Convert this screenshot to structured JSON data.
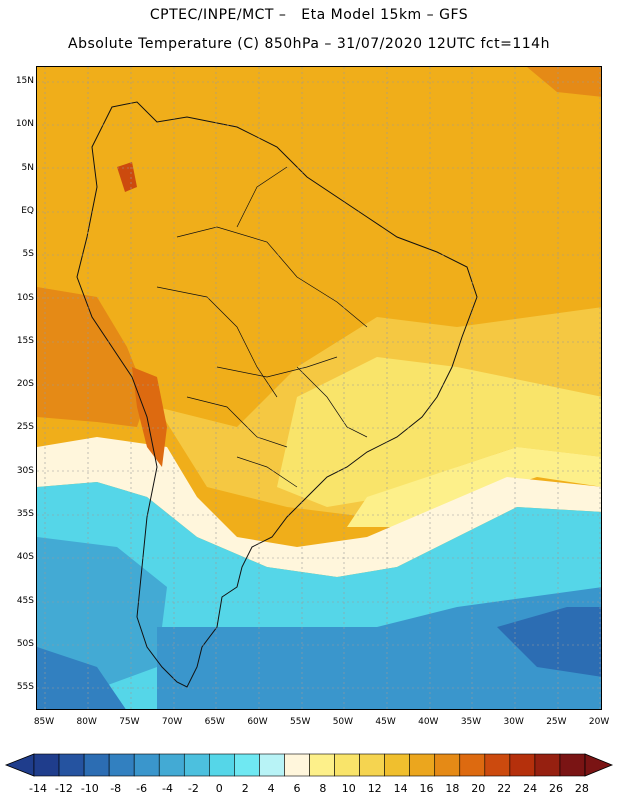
{
  "title_line1": "CPTEC/INPE/MCT –   Eta Model 15km – GFS",
  "title_line2": "Absolute Temperature (C) 850hPa – 31/07/2020 12UTC fct=114h",
  "lat_labels": [
    "15N",
    "10N",
    "5N",
    "EQ",
    "5S",
    "10S",
    "15S",
    "20S",
    "25S",
    "30S",
    "35S",
    "40S",
    "45S",
    "50S",
    "55S"
  ],
  "lon_labels": [
    "85W",
    "80W",
    "75W",
    "70W",
    "65W",
    "60W",
    "55W",
    "50W",
    "45W",
    "40W",
    "35W",
    "30W",
    "25W",
    "20W"
  ],
  "legend": {
    "labels": [
      "-14",
      "-12",
      "-10",
      "-8",
      "-6",
      "-4",
      "-2",
      "0",
      "2",
      "4",
      "6",
      "8",
      "10",
      "12",
      "14",
      "16",
      "18",
      "20",
      "22",
      "24",
      "26",
      "28"
    ],
    "colors": [
      "#1f3d8c",
      "#2553a0",
      "#2c6db3",
      "#3280c0",
      "#3a96cc",
      "#43aad4",
      "#4cc0de",
      "#55d6e8",
      "#6fe8f2",
      "#b8f3f6",
      "#fff6dc",
      "#fdf08a",
      "#f9e46a",
      "#f5d450",
      "#f0bf2e",
      "#eba61e",
      "#e58a16",
      "#dd6a10",
      "#cc4a0e",
      "#b5300c",
      "#962010",
      "#7a1414"
    ]
  },
  "chart_data": {
    "type": "heatmap",
    "variable": "Absolute Temperature (C) 850hPa",
    "model": "Eta Model 15km – GFS",
    "valid": "31/07/2020 12UTC fct=114h",
    "lon_range": [
      -85,
      -20
    ],
    "lat_range": [
      -57,
      16
    ],
    "color_scale_min": -14,
    "color_scale_max": 28,
    "grid": true
  },
  "colors": {
    "tropical_warm": "#f2b11c",
    "warm": "#f5c842",
    "mild": "#fae88a",
    "transition": "#fff6dc",
    "cold": "#55d6e8",
    "very_cold": "#3a96cc",
    "coldest": "#2c6db3",
    "hot_spot": "#e0771a"
  }
}
